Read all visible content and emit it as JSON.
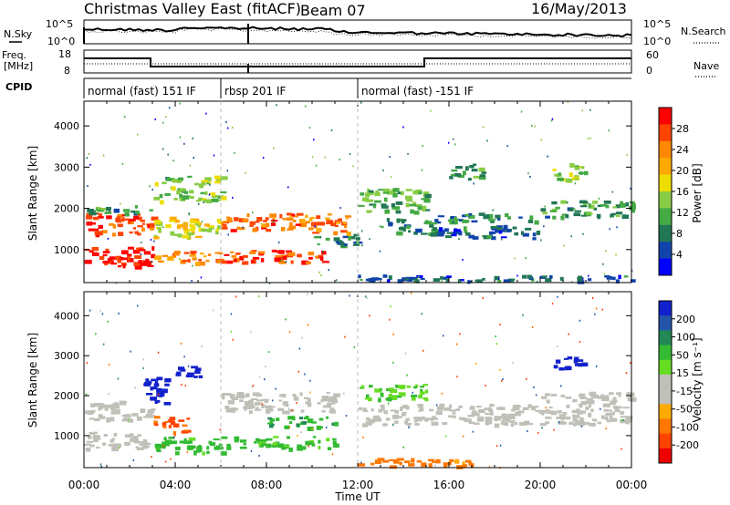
{
  "header": {
    "station": "Christmas Valley East (fitACF)",
    "beam": "Beam 07",
    "date": "16/May/2013"
  },
  "noise_panel": {
    "left_label": "N.Sky",
    "right_label": "N.Search",
    "left_ticks": [
      "10^5",
      "10^0"
    ],
    "right_ticks": [
      "10^5",
      "10^0"
    ]
  },
  "freq_panel": {
    "left_label_1": "Freq.",
    "left_label_2": "[MHz]",
    "right_label": "Nave",
    "left_ticks": [
      "18",
      "8"
    ],
    "right_ticks": [
      "60",
      "0"
    ]
  },
  "cpid": {
    "label": "CPID",
    "segments": [
      {
        "label": "normal (fast) 151 IF",
        "start": 0,
        "end": 6
      },
      {
        "label": "rbsp 201 IF",
        "start": 6,
        "end": 12
      },
      {
        "label": "normal (fast) -151 IF",
        "start": 12,
        "end": 24
      }
    ]
  },
  "x_axis": {
    "label": "Time UT",
    "ticks": [
      "00:00",
      "04:00",
      "08:00",
      "12:00",
      "16:00",
      "20:00",
      "00:00"
    ]
  },
  "power_colorbar": {
    "label": "Power [dB]",
    "ticks": [
      "28",
      "24",
      "20",
      "16",
      "12",
      "8",
      "4"
    ],
    "colors": [
      "#ff0000",
      "#ff4400",
      "#ff8800",
      "#ffaa00",
      "#eedd00",
      "#88cc44",
      "#44aa44",
      "#227755",
      "#1144aa",
      "#0000ff"
    ]
  },
  "velocity_colorbar": {
    "label": "Velocity [m s⁻¹]",
    "ticks": [
      "200",
      "100",
      "50",
      "15",
      "-15",
      "-50",
      "-100",
      "-200"
    ],
    "colors": [
      "#1122cc",
      "#2255aa",
      "#228855",
      "#33bb33",
      "#66dd22",
      "#c0c0b8",
      "#c0c0b8",
      "#ffaa00",
      "#ff7700",
      "#ff4400",
      "#ee0000"
    ]
  },
  "chart_data": [
    {
      "type": "heatmap",
      "title": "Power",
      "xlabel": "Time UT",
      "ylabel": "Slant Range [km]",
      "xlim": [
        0,
        24
      ],
      "ylim": [
        200,
        4600
      ],
      "yticks": [
        1000,
        2000,
        3000,
        4000
      ],
      "colorbar": {
        "label": "Power [dB]",
        "range": [
          0,
          32
        ],
        "ticks": [
          4,
          8,
          12,
          16,
          20,
          24,
          28
        ]
      },
      "regions": [
        {
          "t0": 0.0,
          "t1": 3.0,
          "r0": 1400,
          "r1": 1900,
          "value": 28
        },
        {
          "t0": 0.0,
          "t1": 3.0,
          "r0": 600,
          "r1": 1100,
          "value": 30
        },
        {
          "t0": 0.0,
          "t1": 3.0,
          "r0": 1900,
          "r1": 2100,
          "value": 10
        },
        {
          "t0": 3.0,
          "t1": 6.0,
          "r0": 1300,
          "r1": 1800,
          "value": 18
        },
        {
          "t0": 3.0,
          "t1": 6.0,
          "r0": 700,
          "r1": 1000,
          "value": 24
        },
        {
          "t0": 3.0,
          "t1": 6.0,
          "r0": 2200,
          "r1": 2800,
          "value": 14
        },
        {
          "t0": 6.0,
          "t1": 10.0,
          "r0": 1500,
          "r1": 1900,
          "value": 26
        },
        {
          "t0": 6.0,
          "t1": 11.0,
          "r0": 700,
          "r1": 1000,
          "value": 28
        },
        {
          "t0": 10.0,
          "t1": 11.5,
          "r0": 1400,
          "r1": 1900,
          "value": 24
        },
        {
          "t0": 10.0,
          "t1": 12.0,
          "r0": 1100,
          "r1": 1400,
          "value": 8
        },
        {
          "t0": 12.0,
          "t1": 15.0,
          "r0": 1900,
          "r1": 2500,
          "value": 12
        },
        {
          "t0": 13.0,
          "t1": 15.5,
          "r0": 1400,
          "r1": 1800,
          "value": 8
        },
        {
          "t0": 15.5,
          "t1": 20.0,
          "r0": 1300,
          "r1": 1600,
          "value": 6
        },
        {
          "t0": 15.5,
          "t1": 20.0,
          "r0": 1700,
          "r1": 1900,
          "value": 8
        },
        {
          "t0": 16.0,
          "t1": 17.5,
          "r0": 2700,
          "r1": 3100,
          "value": 10
        },
        {
          "t0": 20.5,
          "t1": 22.0,
          "r0": 2700,
          "r1": 3100,
          "value": 14
        },
        {
          "t0": 20.0,
          "t1": 24.0,
          "r0": 1800,
          "r1": 2200,
          "value": 10
        },
        {
          "t0": 12.0,
          "t1": 24.0,
          "r0": 250,
          "r1": 400,
          "value": 6
        }
      ]
    },
    {
      "type": "heatmap",
      "title": "Velocity",
      "xlabel": "Time UT",
      "ylabel": "Slant Range [km]",
      "xlim": [
        0,
        24
      ],
      "ylim": [
        200,
        4600
      ],
      "yticks": [
        1000,
        2000,
        3000,
        4000
      ],
      "colorbar": {
        "label": "Velocity [m s⁻¹]",
        "range": [
          -250,
          250
        ],
        "ticks": [
          200,
          100,
          50,
          15,
          -15,
          -50,
          -100,
          -200
        ]
      },
      "regions": [
        {
          "t0": 0.0,
          "t1": 3.0,
          "r0": 1400,
          "r1": 1900,
          "value": 0
        },
        {
          "t0": 0.0,
          "t1": 3.0,
          "r0": 700,
          "r1": 1100,
          "value": 0
        },
        {
          "t0": 2.6,
          "t1": 3.6,
          "r0": 1800,
          "r1": 2500,
          "value": 200
        },
        {
          "t0": 4.0,
          "t1": 5.2,
          "r0": 2500,
          "r1": 2800,
          "value": 200
        },
        {
          "t0": 3.0,
          "t1": 4.5,
          "r0": 1100,
          "r1": 1500,
          "value": -80
        },
        {
          "t0": 3.0,
          "t1": 6.0,
          "r0": 600,
          "r1": 1000,
          "value": 40
        },
        {
          "t0": 6.0,
          "t1": 11.0,
          "r0": 700,
          "r1": 1000,
          "value": 40
        },
        {
          "t0": 8.0,
          "t1": 11.0,
          "r0": 1200,
          "r1": 1500,
          "value": 45
        },
        {
          "t0": 6.0,
          "t1": 11.0,
          "r0": 1600,
          "r1": 2100,
          "value": 0
        },
        {
          "t0": 12.0,
          "t1": 15.0,
          "r0": 1900,
          "r1": 2300,
          "value": 30
        },
        {
          "t0": 12.0,
          "t1": 24.0,
          "r0": 1300,
          "r1": 1800,
          "value": 0
        },
        {
          "t0": 20.5,
          "t1": 22.0,
          "r0": 2700,
          "r1": 3000,
          "value": 200
        },
        {
          "t0": 20.0,
          "t1": 24.0,
          "r0": 1800,
          "r1": 2100,
          "value": 0
        },
        {
          "t0": 12.0,
          "t1": 17.0,
          "r0": 250,
          "r1": 450,
          "value": -40
        }
      ]
    }
  ]
}
